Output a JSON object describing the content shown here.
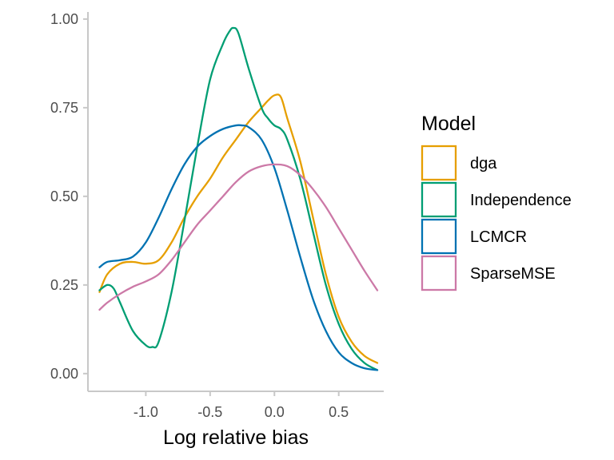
{
  "chart_data": {
    "type": "line",
    "xlabel": "Log relative bias",
    "ylabel": "",
    "xlim": [
      -1.45,
      0.85
    ],
    "ylim": [
      -0.05,
      1.02
    ],
    "x_ticks": [
      -1.0,
      -0.5,
      0.0,
      0.5
    ],
    "x_tick_labels": [
      "-1.0",
      "-0.5",
      "0.0",
      "0.5"
    ],
    "y_ticks": [
      0.0,
      0.25,
      0.5,
      0.75,
      1.0
    ],
    "y_tick_labels": [
      "0.00",
      "0.25",
      "0.50",
      "0.75",
      "1.00"
    ],
    "grid": false,
    "legend": {
      "title": "Model",
      "placement": "right"
    },
    "series": [
      {
        "name": "dga",
        "color": "#E69F00",
        "x": [
          -1.36,
          -1.3,
          -1.2,
          -1.1,
          -1.0,
          -0.9,
          -0.8,
          -0.7,
          -0.6,
          -0.5,
          -0.4,
          -0.3,
          -0.2,
          -0.1,
          -0.05,
          0.0,
          0.05,
          0.1,
          0.2,
          0.3,
          0.4,
          0.5,
          0.6,
          0.7,
          0.8
        ],
        "y": [
          0.23,
          0.28,
          0.31,
          0.315,
          0.31,
          0.32,
          0.37,
          0.44,
          0.5,
          0.55,
          0.61,
          0.66,
          0.71,
          0.75,
          0.77,
          0.785,
          0.78,
          0.72,
          0.6,
          0.44,
          0.28,
          0.16,
          0.09,
          0.05,
          0.03
        ]
      },
      {
        "name": "Independence",
        "color": "#009E73",
        "x": [
          -1.36,
          -1.3,
          -1.25,
          -1.2,
          -1.1,
          -1.0,
          -0.95,
          -0.9,
          -0.8,
          -0.7,
          -0.6,
          -0.5,
          -0.4,
          -0.35,
          -0.32,
          -0.28,
          -0.2,
          -0.1,
          -0.05,
          0.0,
          0.05,
          0.1,
          0.2,
          0.3,
          0.4,
          0.5,
          0.6,
          0.7,
          0.8
        ],
        "y": [
          0.235,
          0.25,
          0.24,
          0.2,
          0.12,
          0.08,
          0.075,
          0.09,
          0.23,
          0.43,
          0.64,
          0.83,
          0.93,
          0.965,
          0.975,
          0.96,
          0.86,
          0.75,
          0.72,
          0.7,
          0.69,
          0.66,
          0.55,
          0.4,
          0.25,
          0.14,
          0.07,
          0.03,
          0.01
        ]
      },
      {
        "name": "LCMCR",
        "color": "#0072B2",
        "x": [
          -1.36,
          -1.3,
          -1.2,
          -1.1,
          -1.0,
          -0.9,
          -0.8,
          -0.7,
          -0.6,
          -0.5,
          -0.4,
          -0.3,
          -0.25,
          -0.2,
          -0.1,
          0.0,
          0.1,
          0.2,
          0.3,
          0.4,
          0.5,
          0.6,
          0.7,
          0.8
        ],
        "y": [
          0.3,
          0.315,
          0.32,
          0.33,
          0.37,
          0.44,
          0.52,
          0.59,
          0.64,
          0.67,
          0.69,
          0.7,
          0.7,
          0.695,
          0.66,
          0.58,
          0.46,
          0.33,
          0.21,
          0.12,
          0.06,
          0.03,
          0.015,
          0.01
        ]
      },
      {
        "name": "SparseMSE",
        "color": "#CC79A7",
        "x": [
          -1.36,
          -1.3,
          -1.2,
          -1.1,
          -1.0,
          -0.9,
          -0.8,
          -0.7,
          -0.6,
          -0.5,
          -0.4,
          -0.3,
          -0.2,
          -0.1,
          0.0,
          0.1,
          0.2,
          0.3,
          0.4,
          0.5,
          0.6,
          0.7,
          0.8
        ],
        "y": [
          0.18,
          0.2,
          0.225,
          0.245,
          0.26,
          0.28,
          0.32,
          0.37,
          0.42,
          0.46,
          0.5,
          0.54,
          0.57,
          0.585,
          0.59,
          0.585,
          0.56,
          0.52,
          0.47,
          0.41,
          0.35,
          0.29,
          0.235
        ]
      }
    ]
  }
}
